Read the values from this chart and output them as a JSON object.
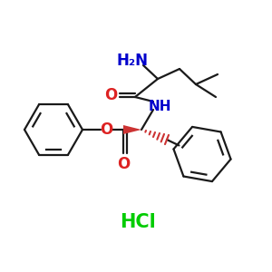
{
  "bg_color": "#ffffff",
  "bond_color": "#1a1a1a",
  "amino_color": "#0000cc",
  "nh_color": "#0000cc",
  "hcl_color": "#00cc00",
  "wedge_color": "#cc3333",
  "o_color": "#dd2222",
  "amino_label": "H₂N",
  "nh_label": "NH",
  "o_label": "O",
  "hcl_label": "HCl",
  "figsize": [
    3.0,
    3.0
  ],
  "dpi": 100
}
